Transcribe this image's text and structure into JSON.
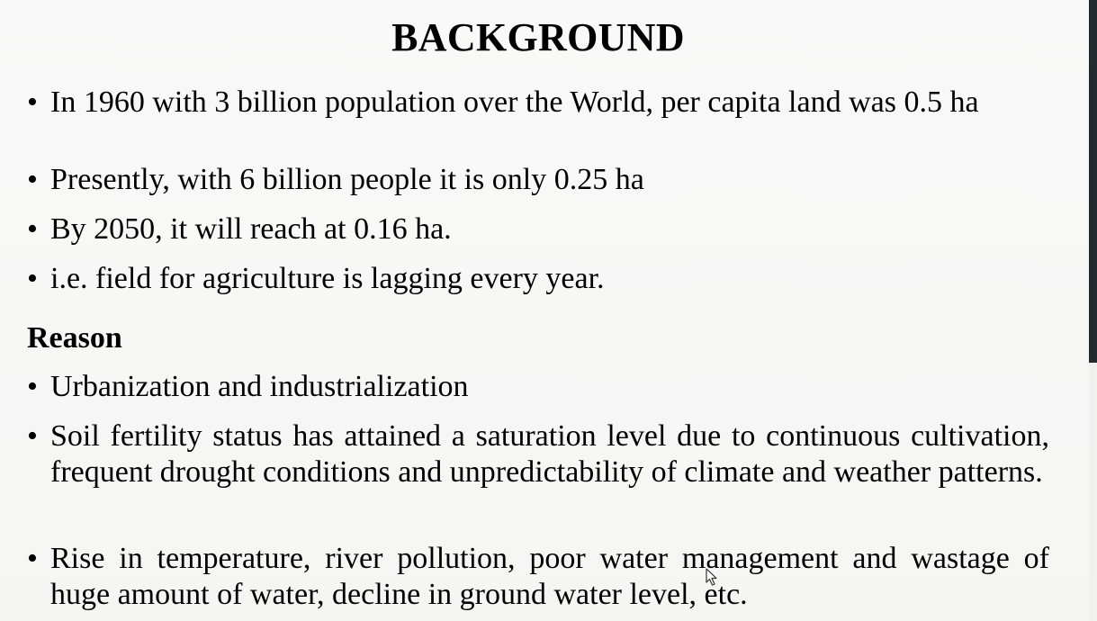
{
  "slide": {
    "title": "BACKGROUND",
    "bullet_symbol": "•",
    "points": [
      "In 1960 with 3 billion population over the World, per capita land was 0.5 ha",
      "Presently, with 6 billion people it is only 0.25 ha",
      "By 2050, it will reach at 0.16 ha.",
      "i.e. field for agriculture is lagging every year."
    ],
    "reason_heading": "Reason",
    "reasons": [
      "Urbanization and industrialization",
      "Soil fertility status has attained a saturation level due to continuous cultivation, frequent drought conditions and unpredictability of climate and weather patterns.",
      " Rise in temperature, river pollution, poor water management and wastage of huge amount of water, decline in ground water level, etc."
    ]
  },
  "icons": {
    "cursor": "mouse-pointer-icon"
  },
  "colors": {
    "text": "#000000",
    "background": "#f7f7f6",
    "edge_bar": "#24292d"
  }
}
